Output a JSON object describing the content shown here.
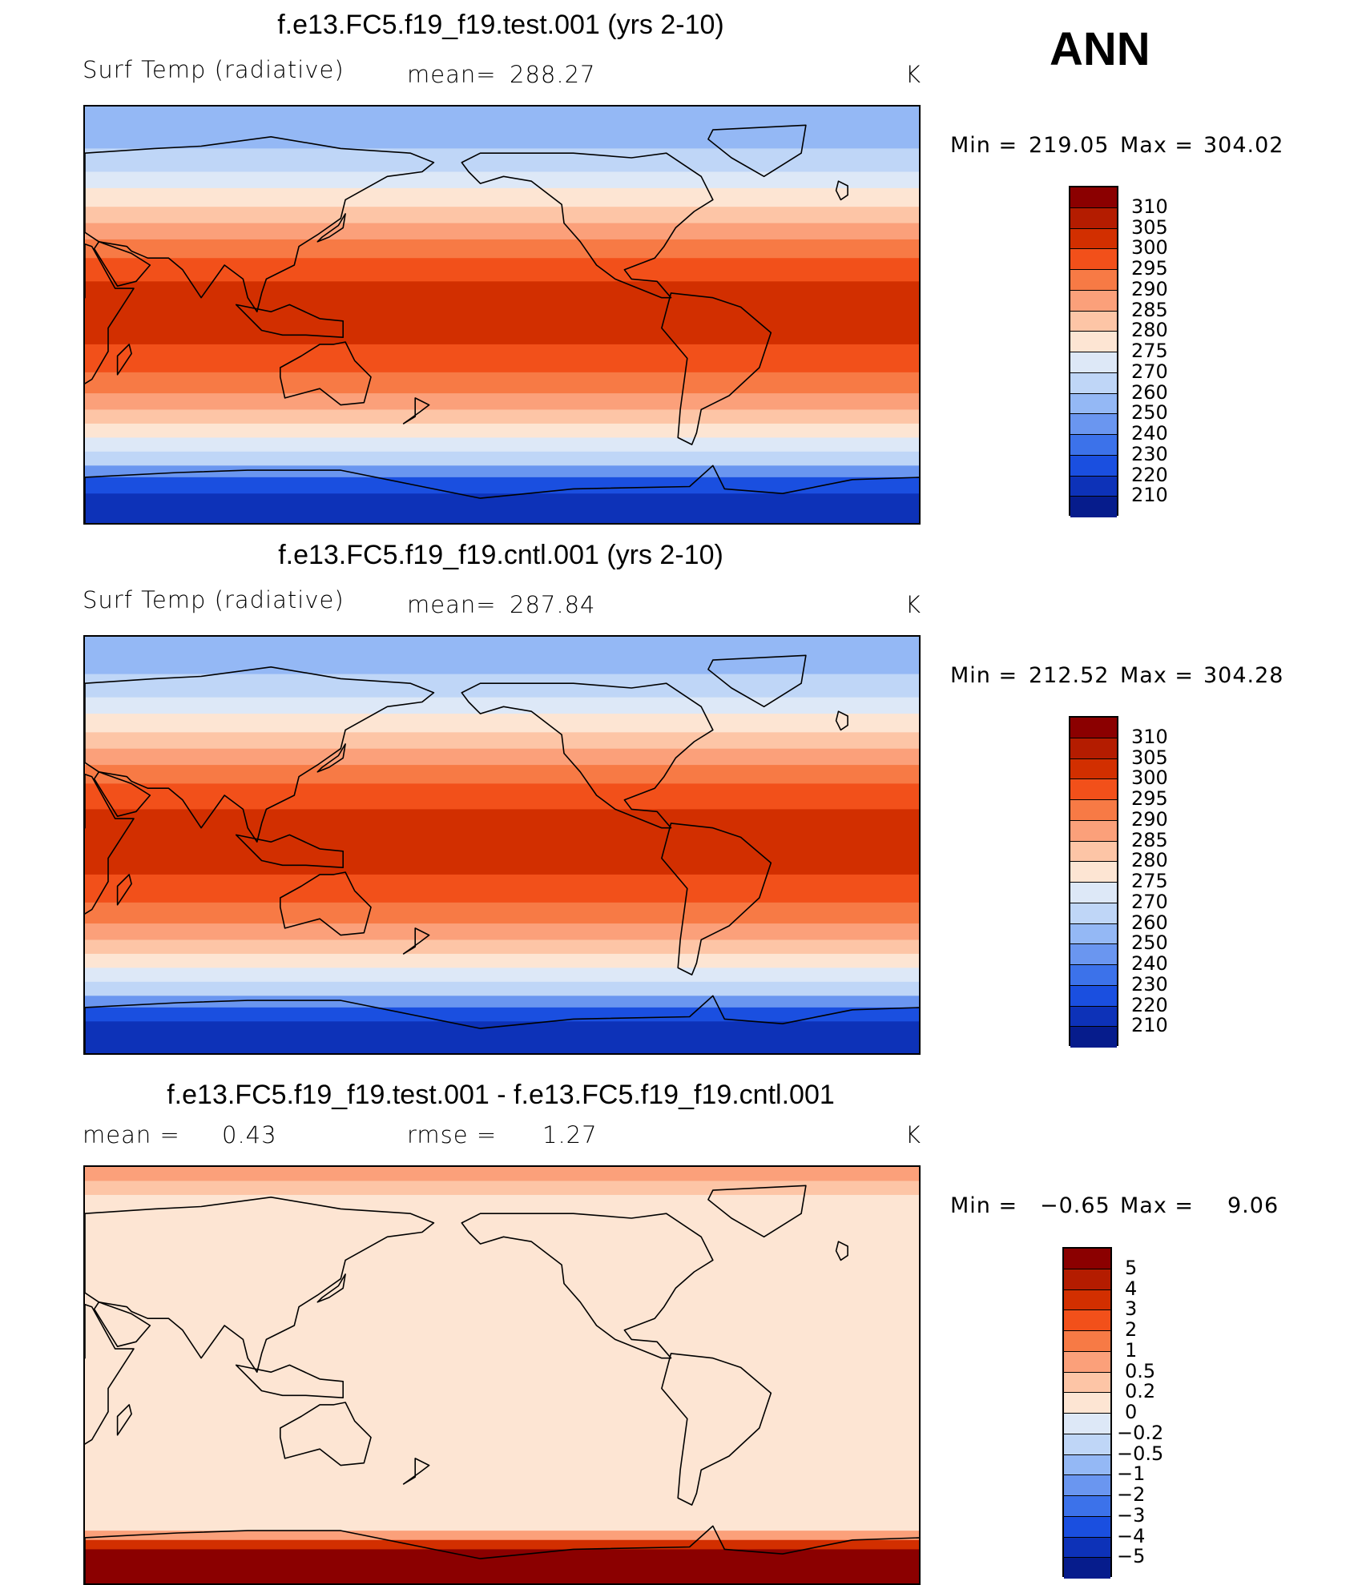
{
  "season": "ANN",
  "chart_data": [
    {
      "type": "heatmap",
      "title": "f.e13.FC5.f19_f19.test.001 (yrs 2-10)",
      "variable": "Surf Temp (radiative)",
      "stat_label": "mean=",
      "stat_value": "288.27",
      "units": "K",
      "min_label": "Min =",
      "min_value": "219.05",
      "max_label": "Max =",
      "max_value": "304.02",
      "colorbar_levels": [
        "310",
        "305",
        "300",
        "295",
        "290",
        "285",
        "280",
        "275",
        "270",
        "260",
        "250",
        "240",
        "230",
        "220",
        "210"
      ],
      "colorbar_colors": [
        "#8b0000",
        "#b41c00",
        "#d22f00",
        "#f2501a",
        "#f77a45",
        "#fba07a",
        "#fdc5a6",
        "#fde5d3",
        "#dde8f7",
        "#bfd6f7",
        "#94b8f5",
        "#6a96f0",
        "#3c72ea",
        "#1a4fe0",
        "#0d32b8",
        "#061c8c"
      ],
      "latitude_bands": [
        {
          "lat_from": 90,
          "lat_to": 72,
          "color": "#94b8f5"
        },
        {
          "lat_from": 72,
          "lat_to": 62,
          "color": "#bfd6f7"
        },
        {
          "lat_from": 62,
          "lat_to": 55,
          "color": "#dde8f7"
        },
        {
          "lat_from": 55,
          "lat_to": 47,
          "color": "#fde5d3"
        },
        {
          "lat_from": 47,
          "lat_to": 40,
          "color": "#fdc5a6"
        },
        {
          "lat_from": 40,
          "lat_to": 33,
          "color": "#fba07a"
        },
        {
          "lat_from": 33,
          "lat_to": 25,
          "color": "#f77a45"
        },
        {
          "lat_from": 25,
          "lat_to": 15,
          "color": "#f2501a"
        },
        {
          "lat_from": 15,
          "lat_to": -12,
          "color": "#d22f00"
        },
        {
          "lat_from": -12,
          "lat_to": -24,
          "color": "#f2501a"
        },
        {
          "lat_from": -24,
          "lat_to": -33,
          "color": "#f77a45"
        },
        {
          "lat_from": -33,
          "lat_to": -40,
          "color": "#fba07a"
        },
        {
          "lat_from": -40,
          "lat_to": -46,
          "color": "#fdc5a6"
        },
        {
          "lat_from": -46,
          "lat_to": -52,
          "color": "#fde5d3"
        },
        {
          "lat_from": -52,
          "lat_to": -58,
          "color": "#dde8f7"
        },
        {
          "lat_from": -58,
          "lat_to": -64,
          "color": "#bfd6f7"
        },
        {
          "lat_from": -64,
          "lat_to": -69,
          "color": "#6a96f0"
        },
        {
          "lat_from": -69,
          "lat_to": -76,
          "color": "#1a4fe0"
        },
        {
          "lat_from": -76,
          "lat_to": -90,
          "color": "#0d32b8"
        }
      ]
    },
    {
      "type": "heatmap",
      "title": "f.e13.FC5.f19_f19.cntl.001 (yrs 2-10)",
      "variable": "Surf Temp (radiative)",
      "stat_label": "mean=",
      "stat_value": "287.84",
      "units": "K",
      "min_label": "Min =",
      "min_value": "212.52",
      "max_label": "Max =",
      "max_value": "304.28",
      "colorbar_levels": [
        "310",
        "305",
        "300",
        "295",
        "290",
        "285",
        "280",
        "275",
        "270",
        "260",
        "250",
        "240",
        "230",
        "220",
        "210"
      ],
      "colorbar_colors": [
        "#8b0000",
        "#b41c00",
        "#d22f00",
        "#f2501a",
        "#f77a45",
        "#fba07a",
        "#fdc5a6",
        "#fde5d3",
        "#dde8f7",
        "#bfd6f7",
        "#94b8f5",
        "#6a96f0",
        "#3c72ea",
        "#1a4fe0",
        "#0d32b8",
        "#061c8c"
      ],
      "latitude_bands": [
        {
          "lat_from": 90,
          "lat_to": 74,
          "color": "#94b8f5"
        },
        {
          "lat_from": 74,
          "lat_to": 64,
          "color": "#bfd6f7"
        },
        {
          "lat_from": 64,
          "lat_to": 57,
          "color": "#dde8f7"
        },
        {
          "lat_from": 57,
          "lat_to": 49,
          "color": "#fde5d3"
        },
        {
          "lat_from": 49,
          "lat_to": 42,
          "color": "#fdc5a6"
        },
        {
          "lat_from": 42,
          "lat_to": 35,
          "color": "#fba07a"
        },
        {
          "lat_from": 35,
          "lat_to": 27,
          "color": "#f77a45"
        },
        {
          "lat_from": 27,
          "lat_to": 16,
          "color": "#f2501a"
        },
        {
          "lat_from": 16,
          "lat_to": -12,
          "color": "#d22f00"
        },
        {
          "lat_from": -12,
          "lat_to": -24,
          "color": "#f2501a"
        },
        {
          "lat_from": -24,
          "lat_to": -33,
          "color": "#f77a45"
        },
        {
          "lat_from": -33,
          "lat_to": -40,
          "color": "#fba07a"
        },
        {
          "lat_from": -40,
          "lat_to": -46,
          "color": "#fdc5a6"
        },
        {
          "lat_from": -46,
          "lat_to": -52,
          "color": "#fde5d3"
        },
        {
          "lat_from": -52,
          "lat_to": -58,
          "color": "#dde8f7"
        },
        {
          "lat_from": -58,
          "lat_to": -64,
          "color": "#bfd6f7"
        },
        {
          "lat_from": -64,
          "lat_to": -69,
          "color": "#6a96f0"
        },
        {
          "lat_from": -69,
          "lat_to": -75,
          "color": "#1a4fe0"
        },
        {
          "lat_from": -75,
          "lat_to": -90,
          "color": "#0d32b8"
        }
      ]
    },
    {
      "type": "heatmap",
      "title": "f.e13.FC5.f19_f19.test.001 - f.e13.FC5.f19_f19.cntl.001",
      "mean_label": "mean =",
      "mean_value": "0.43",
      "rmse_label": "rmse =",
      "rmse_value": "1.27",
      "units": "K",
      "min_label": "Min =",
      "min_value": "−0.65",
      "max_label": "Max =",
      "max_value": "9.06",
      "colorbar_levels": [
        "5",
        "4",
        "3",
        "2",
        "1",
        "0.5",
        "0.2",
        "0",
        "−0.2",
        "−0.5",
        "−1",
        "−2",
        "−3",
        "−4",
        "−5"
      ],
      "colorbar_colors": [
        "#8b0000",
        "#b41c00",
        "#d22f00",
        "#f2501a",
        "#f77a45",
        "#fba07a",
        "#fdc5a6",
        "#fde5d3",
        "#dde8f7",
        "#bfd6f7",
        "#94b8f5",
        "#6a96f0",
        "#3c72ea",
        "#1a4fe0",
        "#0d32b8",
        "#061c8c"
      ],
      "latitude_bands": [
        {
          "lat_from": 90,
          "lat_to": 84,
          "color": "#fba07a"
        },
        {
          "lat_from": 84,
          "lat_to": 78,
          "color": "#fdc5a6"
        },
        {
          "lat_from": 78,
          "lat_to": -66,
          "color": "#fde5d3"
        },
        {
          "lat_from": -66,
          "lat_to": -70,
          "color": "#fba07a"
        },
        {
          "lat_from": -70,
          "lat_to": -74,
          "color": "#d22f00"
        },
        {
          "lat_from": -74,
          "lat_to": -90,
          "color": "#8b0000"
        }
      ]
    }
  ]
}
